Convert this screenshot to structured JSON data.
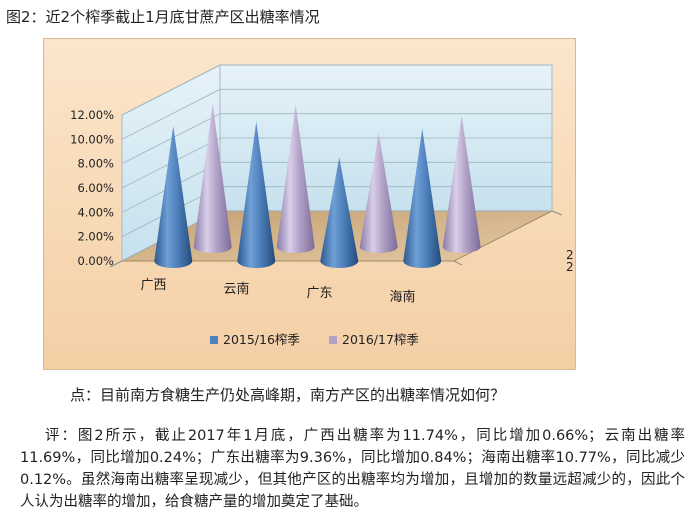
{
  "figure_caption": "图2：近2个榨季截止1月底甘蔗产区出糖率情况",
  "chart_data": {
    "type": "bar",
    "title": "",
    "categories": [
      "广西",
      "云南",
      "广东",
      "海南"
    ],
    "series": [
      {
        "name": "2015/16榨季",
        "values": [
          0.1108,
          0.1145,
          0.0852,
          0.1089
        ]
      },
      {
        "name": "2016/17榨季",
        "values": [
          0.1174,
          0.1169,
          0.0936,
          0.1077
        ]
      }
    ],
    "y_ticks": [
      "0.00%",
      "2.00%",
      "4.00%",
      "6.00%",
      "8.00%",
      "10.00%",
      "12.00%"
    ],
    "ylim": [
      0,
      0.12
    ],
    "depth_axis_labels": [
      "2",
      "2"
    ],
    "legend_position": "bottom",
    "colors": {
      "series1": "#4f81bd",
      "series2": "#b3a2c7"
    },
    "grid": true
  },
  "question": "点：目前南方食糖生产仍处高峰期，南方产区的出糖率情况如何？",
  "comment": "评：图2所示，截止2017年1月底，广西出糖率为11.74%，同比增加0.66%；云南出糖率11.69%，同比增加0.24%；广东出糖率为9.36%，同比增加0.84%；海南出糖率10.77%，同比减少0.12%。虽然海南出糖率呈现减少，但其他产区的出糖率均为增加，且增加的数量远超减少的，因此个人认为出糖率的增加，给食糖产量的增加奠定了基础。"
}
